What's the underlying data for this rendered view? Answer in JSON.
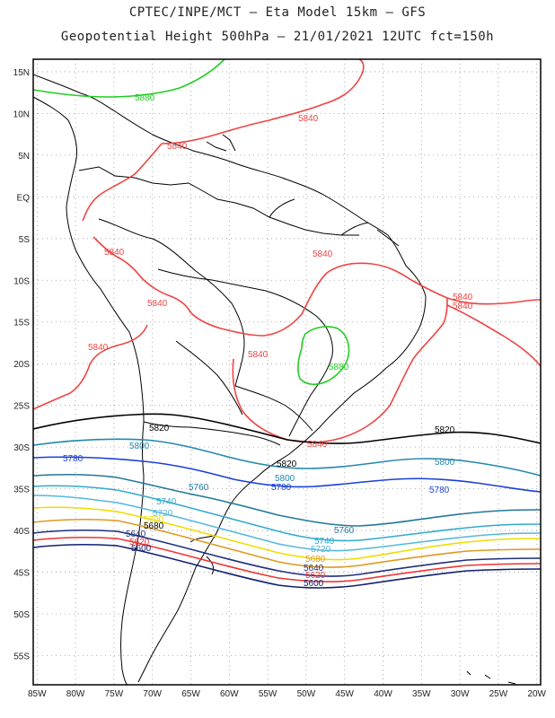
{
  "header": {
    "line1": "CPTEC/INPE/MCT –  Eta Model 15km – GFS",
    "line2": "Geopotential Height 500hPa – 21/01/2021 12UTC fct=150h"
  },
  "map": {
    "lat_labels": [
      "15N",
      "10N",
      "5N",
      "EQ",
      "5S",
      "10S",
      "15S",
      "20S",
      "25S",
      "30S",
      "35S",
      "40S",
      "45S",
      "50S",
      "55S"
    ],
    "lon_labels": [
      "85W",
      "80W",
      "75W",
      "70W",
      "65W",
      "60W",
      "55W",
      "50W",
      "45W",
      "40W",
      "35W",
      "30W",
      "25W",
      "20W"
    ],
    "extent": {
      "lon": [
        -85.5,
        -19.5
      ],
      "lat": [
        -58.5,
        16.5
      ]
    },
    "grid": "dotted"
  },
  "contours": [
    {
      "level": "5880",
      "color": "#22cc22"
    },
    {
      "level": "5840",
      "color": "#ee4444"
    },
    {
      "level": "5820",
      "color": "#000000"
    },
    {
      "level": "5800",
      "color": "#2288aa"
    },
    {
      "level": "5780",
      "color": "#1a3fd6"
    },
    {
      "level": "5760",
      "color": "#227799"
    },
    {
      "level": "5740",
      "color": "#33aacc"
    },
    {
      "level": "5720",
      "color": "#55b8dd"
    },
    {
      "level": "5700",
      "color": "#eedd00"
    },
    {
      "level": "5680",
      "color": "#dd9922"
    },
    {
      "level": "5640",
      "color": "#1f2f7f"
    },
    {
      "level": "5620",
      "color": "#ee3333"
    },
    {
      "level": "5600",
      "color": "#101f6f"
    }
  ]
}
